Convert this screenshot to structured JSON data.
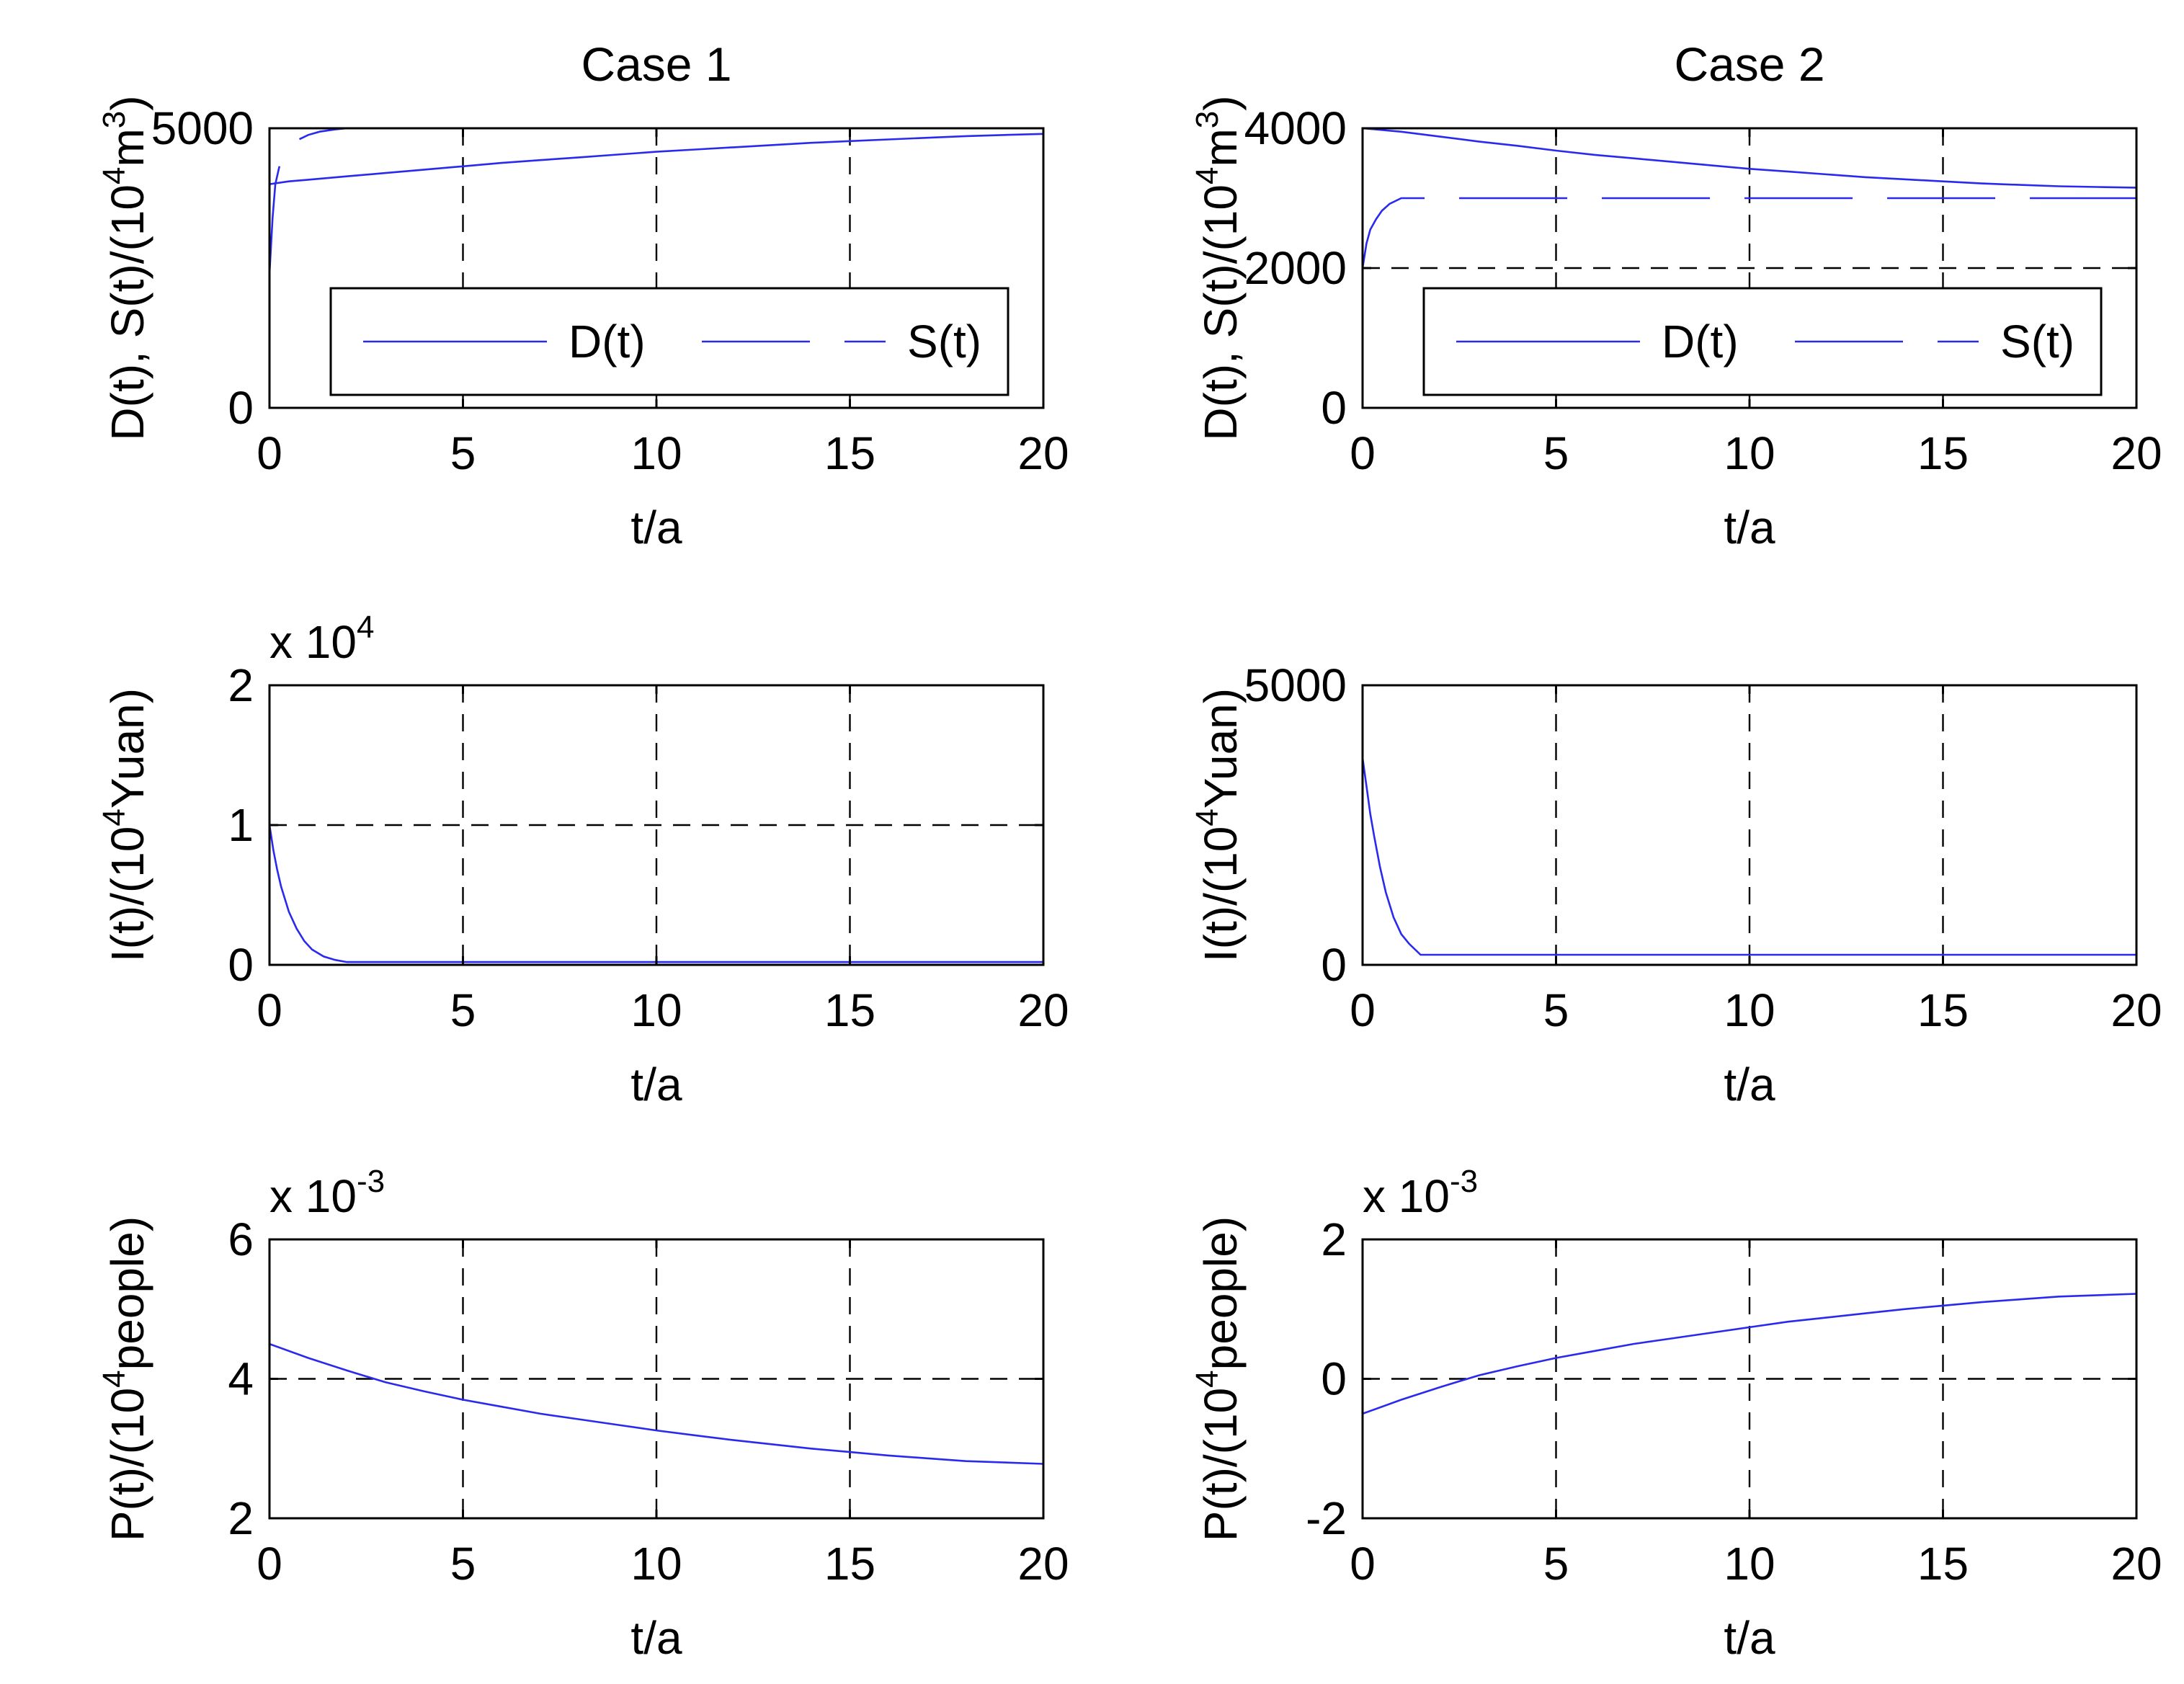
{
  "chart_data": [
    {
      "id": "case1-ds",
      "type": "line",
      "title": "Case 1",
      "xlabel": "t/a",
      "ylabel": {
        "pre": "D(t),  S(t)/(10",
        "sup": "4",
        "mid": "m",
        "sup2": "3",
        "post": ")"
      },
      "xlim": [
        0,
        20
      ],
      "ylim": [
        0,
        5000
      ],
      "xticks": [
        "0",
        "5",
        "10",
        "15",
        "20"
      ],
      "yticks": [
        "0",
        "5000"
      ],
      "xgrid": [
        5,
        10,
        15
      ],
      "ygrid": [],
      "exponent": null,
      "legend": {
        "placement": "center",
        "entries": [
          "D(t)",
          "S(t)"
        ]
      },
      "series": [
        {
          "name": "D(t)",
          "style": "solid",
          "x": [
            0,
            0.5,
            1,
            1.5,
            2,
            3,
            4,
            5,
            6,
            7,
            8,
            9,
            10,
            11,
            12,
            13,
            14,
            15,
            16,
            17,
            18,
            19,
            20
          ],
          "y": [
            4000,
            4050,
            4080,
            4110,
            4140,
            4200,
            4260,
            4320,
            4380,
            4430,
            4480,
            4530,
            4580,
            4620,
            4660,
            4700,
            4740,
            4770,
            4800,
            4830,
            4860,
            4880,
            4900
          ]
        },
        {
          "name": "S(t)",
          "style": "dashed",
          "x": [
            0,
            0.08,
            0.15,
            0.25,
            0.35,
            0.5,
            0.7,
            1.0,
            1.3,
            1.7,
            2.0,
            20
          ],
          "y": [
            2400,
            3400,
            4000,
            4300,
            4500,
            4650,
            4780,
            4880,
            4940,
            4980,
            5000,
            5000
          ]
        }
      ]
    },
    {
      "id": "case2-ds",
      "type": "line",
      "title": "Case 2",
      "xlabel": "t/a",
      "ylabel": {
        "pre": "D(t),  S(t)/(10",
        "sup": "4",
        "mid": "m",
        "sup2": "3",
        "post": ")"
      },
      "xlim": [
        0,
        20
      ],
      "ylim": [
        0,
        4000
      ],
      "xticks": [
        "0",
        "5",
        "10",
        "15",
        "20"
      ],
      "yticks": [
        "0",
        "2000",
        "4000"
      ],
      "xgrid": [
        5,
        10,
        15
      ],
      "ygrid": [
        2000
      ],
      "exponent": null,
      "legend": {
        "placement": "center",
        "entries": [
          "D(t)",
          "S(t)"
        ]
      },
      "series": [
        {
          "name": "D(t)",
          "style": "solid",
          "x": [
            0,
            1,
            2,
            3,
            4,
            5,
            6,
            7,
            8,
            9,
            10,
            11,
            12,
            13,
            14,
            15,
            16,
            17,
            18,
            19,
            20
          ],
          "y": [
            4000,
            3950,
            3880,
            3810,
            3750,
            3680,
            3620,
            3570,
            3520,
            3470,
            3420,
            3380,
            3340,
            3300,
            3270,
            3240,
            3210,
            3190,
            3170,
            3160,
            3150
          ]
        },
        {
          "name": "S(t)",
          "style": "dashed",
          "x": [
            0,
            0.1,
            0.2,
            0.35,
            0.5,
            0.7,
            1.0,
            20
          ],
          "y": [
            2000,
            2350,
            2550,
            2700,
            2820,
            2920,
            3000,
            3000
          ]
        }
      ]
    },
    {
      "id": "case1-i",
      "type": "line",
      "title": "",
      "xlabel": "t/a",
      "ylabel": {
        "pre": "I(t)/(10",
        "sup": "4",
        "mid": "Yuan",
        "sup2": "",
        "post": ")"
      },
      "xlim": [
        0,
        20
      ],
      "ylim": [
        0,
        2
      ],
      "xticks": [
        "0",
        "5",
        "10",
        "15",
        "20"
      ],
      "yticks": [
        "0",
        "1",
        "2"
      ],
      "xgrid": [
        5,
        10,
        15
      ],
      "ygrid": [
        1
      ],
      "exponent": {
        "base": "x 10",
        "power": "4"
      },
      "legend": null,
      "series": [
        {
          "name": "I(t)",
          "style": "solid",
          "x": [
            0,
            0.1,
            0.2,
            0.3,
            0.5,
            0.7,
            0.9,
            1.1,
            1.4,
            1.7,
            2.0,
            20
          ],
          "y": [
            1.0,
            0.82,
            0.68,
            0.56,
            0.38,
            0.26,
            0.17,
            0.11,
            0.06,
            0.035,
            0.02,
            0.02
          ]
        }
      ]
    },
    {
      "id": "case2-i",
      "type": "line",
      "title": "",
      "xlabel": "t/a",
      "ylabel": {
        "pre": "I(t)/(10",
        "sup": "4",
        "mid": "Yuan",
        "sup2": "",
        "post": ")"
      },
      "xlim": [
        0,
        20
      ],
      "ylim": [
        0,
        5000
      ],
      "xticks": [
        "0",
        "5",
        "10",
        "15",
        "20"
      ],
      "yticks": [
        "0",
        "5000"
      ],
      "xgrid": [
        5,
        10,
        15
      ],
      "ygrid": [],
      "exponent": null,
      "legend": null,
      "series": [
        {
          "name": "I(t)",
          "style": "solid",
          "x": [
            0,
            0.1,
            0.2,
            0.3,
            0.45,
            0.6,
            0.8,
            1.0,
            1.2,
            1.5,
            20
          ],
          "y": [
            3700,
            3200,
            2700,
            2300,
            1750,
            1300,
            850,
            550,
            380,
            180,
            180
          ]
        }
      ]
    },
    {
      "id": "case1-p",
      "type": "line",
      "title": "",
      "xlabel": "t/a",
      "ylabel": {
        "pre": "P(t)/(10",
        "sup": "4",
        "mid": "people",
        "sup2": "",
        "post": ")"
      },
      "xlim": [
        0,
        20
      ],
      "ylim": [
        2,
        6
      ],
      "xticks": [
        "0",
        "5",
        "10",
        "15",
        "20"
      ],
      "yticks": [
        "2",
        "4",
        "6"
      ],
      "xgrid": [
        5,
        10,
        15
      ],
      "ygrid": [
        4
      ],
      "exponent": {
        "base": "x 10",
        "power": "-3"
      },
      "legend": null,
      "series": [
        {
          "name": "P(t)",
          "style": "solid",
          "x": [
            0,
            1,
            2,
            3,
            4,
            5,
            6,
            7,
            8,
            9,
            10,
            11,
            12,
            13,
            14,
            15,
            16,
            17,
            18,
            19,
            20
          ],
          "y": [
            4.5,
            4.3,
            4.12,
            3.95,
            3.82,
            3.7,
            3.6,
            3.5,
            3.42,
            3.34,
            3.26,
            3.19,
            3.12,
            3.06,
            3.0,
            2.95,
            2.9,
            2.86,
            2.82,
            2.8,
            2.78
          ]
        }
      ]
    },
    {
      "id": "case2-p",
      "type": "line",
      "title": "",
      "xlabel": "t/a",
      "ylabel": {
        "pre": "P(t)/(10",
        "sup": "4",
        "mid": "people",
        "sup2": "",
        "post": ")"
      },
      "xlim": [
        0,
        20
      ],
      "ylim": [
        -2,
        2
      ],
      "xticks": [
        "0",
        "5",
        "10",
        "15",
        "20"
      ],
      "yticks": [
        "-2",
        "0",
        "2"
      ],
      "xgrid": [
        5,
        10,
        15
      ],
      "ygrid": [
        0
      ],
      "exponent": {
        "base": "x 10",
        "power": "-3"
      },
      "legend": null,
      "series": [
        {
          "name": "P(t)",
          "style": "solid",
          "x": [
            0,
            1,
            2,
            3,
            4,
            5,
            6,
            7,
            8,
            9,
            10,
            11,
            12,
            13,
            14,
            15,
            16,
            17,
            18,
            19,
            20
          ],
          "y": [
            -0.5,
            -0.3,
            -0.12,
            0.05,
            0.18,
            0.3,
            0.4,
            0.5,
            0.58,
            0.66,
            0.74,
            0.82,
            0.88,
            0.94,
            1.0,
            1.05,
            1.1,
            1.14,
            1.18,
            1.2,
            1.22
          ]
        }
      ]
    }
  ]
}
